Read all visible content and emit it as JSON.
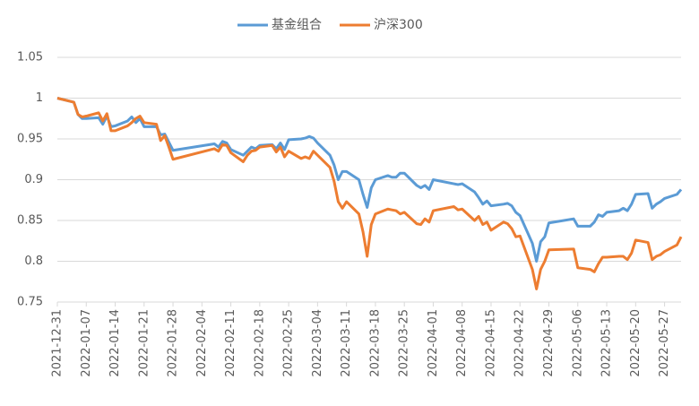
{
  "chart_data": {
    "type": "line",
    "x": [
      "2021-12-31",
      "2022-01-04",
      "2022-01-05",
      "2022-01-06",
      "2022-01-07",
      "2022-01-10",
      "2022-01-11",
      "2022-01-12",
      "2022-01-13",
      "2022-01-14",
      "2022-01-17",
      "2022-01-18",
      "2022-01-19",
      "2022-01-20",
      "2022-01-21",
      "2022-01-24",
      "2022-01-25",
      "2022-01-26",
      "2022-01-27",
      "2022-01-28",
      "2022-02-07",
      "2022-02-08",
      "2022-02-09",
      "2022-02-10",
      "2022-02-11",
      "2022-02-14",
      "2022-02-15",
      "2022-02-16",
      "2022-02-17",
      "2022-02-18",
      "2022-02-21",
      "2022-02-22",
      "2022-02-23",
      "2022-02-24",
      "2022-02-25",
      "2022-02-28",
      "2022-03-01",
      "2022-03-02",
      "2022-03-03",
      "2022-03-04",
      "2022-03-07",
      "2022-03-08",
      "2022-03-09",
      "2022-03-10",
      "2022-03-11",
      "2022-03-14",
      "2022-03-15",
      "2022-03-16",
      "2022-03-17",
      "2022-03-18",
      "2022-03-21",
      "2022-03-22",
      "2022-03-23",
      "2022-03-24",
      "2022-03-25",
      "2022-03-28",
      "2022-03-29",
      "2022-03-30",
      "2022-03-31",
      "2022-04-01",
      "2022-04-06",
      "2022-04-07",
      "2022-04-08",
      "2022-04-11",
      "2022-04-12",
      "2022-04-13",
      "2022-04-14",
      "2022-04-15",
      "2022-04-18",
      "2022-04-19",
      "2022-04-20",
      "2022-04-21",
      "2022-04-22",
      "2022-04-25",
      "2022-04-26",
      "2022-04-27",
      "2022-04-28",
      "2022-04-29",
      "2022-05-05",
      "2022-05-06",
      "2022-05-09",
      "2022-05-10",
      "2022-05-11",
      "2022-05-12",
      "2022-05-13",
      "2022-05-16",
      "2022-05-17",
      "2022-05-18",
      "2022-05-19",
      "2022-05-20",
      "2022-05-23",
      "2022-05-24",
      "2022-05-25",
      "2022-05-26",
      "2022-05-27",
      "2022-05-30",
      "2022-05-31"
    ],
    "series": [
      {
        "name": "基金组合",
        "color": "#5b9bd5",
        "values": [
          1.0,
          0.995,
          0.98,
          0.975,
          0.975,
          0.976,
          0.968,
          0.978,
          0.965,
          0.966,
          0.972,
          0.977,
          0.97,
          0.975,
          0.965,
          0.965,
          0.955,
          0.956,
          0.946,
          0.936,
          0.944,
          0.94,
          0.947,
          0.945,
          0.937,
          0.93,
          0.935,
          0.94,
          0.938,
          0.942,
          0.943,
          0.938,
          0.945,
          0.937,
          0.949,
          0.95,
          0.951,
          0.953,
          0.951,
          0.945,
          0.93,
          0.918,
          0.9,
          0.91,
          0.91,
          0.9,
          0.882,
          0.866,
          0.89,
          0.9,
          0.905,
          0.903,
          0.903,
          0.908,
          0.908,
          0.893,
          0.89,
          0.893,
          0.888,
          0.9,
          0.895,
          0.894,
          0.895,
          0.885,
          0.878,
          0.87,
          0.874,
          0.868,
          0.87,
          0.871,
          0.868,
          0.86,
          0.856,
          0.822,
          0.8,
          0.824,
          0.83,
          0.847,
          0.852,
          0.843,
          0.843,
          0.848,
          0.857,
          0.855,
          0.86,
          0.862,
          0.865,
          0.862,
          0.87,
          0.882,
          0.883,
          0.865,
          0.87,
          0.873,
          0.877,
          0.882,
          0.888
        ]
      },
      {
        "name": "沪深300",
        "color": "#ed7d31",
        "values": [
          1.0,
          0.995,
          0.98,
          0.977,
          0.978,
          0.982,
          0.972,
          0.981,
          0.96,
          0.96,
          0.966,
          0.97,
          0.975,
          0.978,
          0.97,
          0.968,
          0.948,
          0.954,
          0.94,
          0.925,
          0.938,
          0.935,
          0.943,
          0.942,
          0.933,
          0.922,
          0.93,
          0.935,
          0.936,
          0.94,
          0.942,
          0.934,
          0.94,
          0.928,
          0.935,
          0.926,
          0.928,
          0.926,
          0.935,
          0.93,
          0.915,
          0.898,
          0.873,
          0.865,
          0.873,
          0.858,
          0.836,
          0.806,
          0.845,
          0.858,
          0.864,
          0.863,
          0.862,
          0.858,
          0.86,
          0.846,
          0.845,
          0.852,
          0.848,
          0.862,
          0.867,
          0.863,
          0.864,
          0.85,
          0.855,
          0.845,
          0.848,
          0.838,
          0.848,
          0.846,
          0.84,
          0.83,
          0.831,
          0.79,
          0.766,
          0.79,
          0.8,
          0.814,
          0.815,
          0.792,
          0.79,
          0.787,
          0.797,
          0.805,
          0.805,
          0.806,
          0.806,
          0.802,
          0.81,
          0.826,
          0.823,
          0.802,
          0.806,
          0.808,
          0.812,
          0.82,
          0.83
        ]
      }
    ],
    "xlim": [
      "2021-12-31",
      "2022-05-31"
    ],
    "xticks": [
      "2021-12-31",
      "2022-01-07",
      "2022-01-14",
      "2022-01-21",
      "2022-01-28",
      "2022-02-04",
      "2022-02-11",
      "2022-02-18",
      "2022-02-25",
      "2022-03-04",
      "2022-03-11",
      "2022-03-18",
      "2022-03-25",
      "2022-04-01",
      "2022-04-08",
      "2022-04-15",
      "2022-04-22",
      "2022-04-29",
      "2022-05-06",
      "2022-05-13",
      "2022-05-20",
      "2022-05-27"
    ],
    "ylim": [
      0.75,
      1.05
    ],
    "yticks": [
      0.75,
      0.8,
      0.85,
      0.9,
      0.95,
      1,
      1.05
    ],
    "grid": true,
    "legend": "top"
  }
}
